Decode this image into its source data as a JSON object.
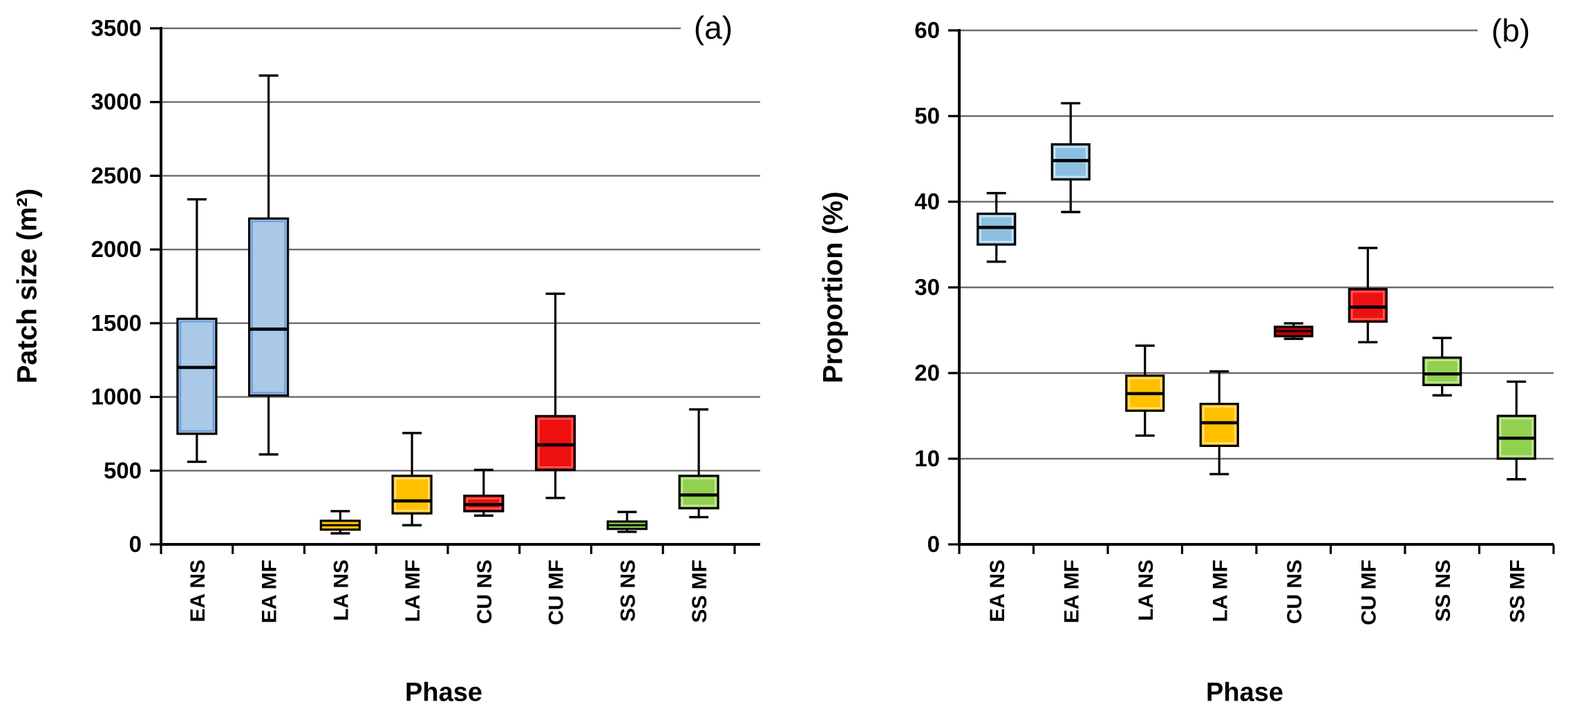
{
  "page": {
    "background": "#ffffff",
    "grid_color": "#6b6b6b",
    "axis_color": "#000000"
  },
  "chart_data": [
    {
      "type": "boxplot",
      "panel": "a",
      "annotation": "(a)",
      "ylabel": "Patch size (m²)",
      "xlabel": "Phase",
      "ylim": [
        0,
        3500
      ],
      "ytick_step": 500,
      "ytick_labels": [
        "3500",
        "3000",
        "2500",
        "2000",
        "1500",
        "1000",
        "500",
        "0"
      ],
      "grid": true,
      "legend": "none",
      "categories": [
        "EA NS",
        "EA MF",
        "LA NS",
        "LA MF",
        "CU NS",
        "CU MF",
        "SS NS",
        "SS MF"
      ],
      "series": [
        {
          "name": "EA NS",
          "min": 560,
          "q1": 750,
          "median": 1200,
          "q3": 1530,
          "max": 2340,
          "fill": "#aac8e8",
          "highlight": "#6f9fd8"
        },
        {
          "name": "EA MF",
          "min": 610,
          "q1": 1010,
          "median": 1460,
          "q3": 2210,
          "max": 3180,
          "fill": "#aac8e8",
          "highlight": "#6f9fd8"
        },
        {
          "name": "LA NS",
          "min": 75,
          "q1": 100,
          "median": 130,
          "q3": 160,
          "max": 225,
          "fill": "#ffc000",
          "highlight": "#ffdf7f"
        },
        {
          "name": "LA MF",
          "min": 130,
          "q1": 210,
          "median": 295,
          "q3": 465,
          "max": 755,
          "fill": "#ffc000",
          "highlight": "#ffdf7f"
        },
        {
          "name": "CU NS",
          "min": 195,
          "q1": 225,
          "median": 270,
          "q3": 330,
          "max": 505,
          "fill": "#ee0f0f",
          "highlight": "#ff5a5a"
        },
        {
          "name": "CU MF",
          "min": 315,
          "q1": 505,
          "median": 675,
          "q3": 870,
          "max": 1700,
          "fill": "#ee0f0f",
          "highlight": "#ff5a5a"
        },
        {
          "name": "SS NS",
          "min": 85,
          "q1": 105,
          "median": 130,
          "q3": 155,
          "max": 220,
          "fill": "#92d050",
          "highlight": "#c6e79a"
        },
        {
          "name": "SS MF",
          "min": 185,
          "q1": 245,
          "median": 335,
          "q3": 465,
          "max": 915,
          "fill": "#92d050",
          "highlight": "#c6e79a"
        }
      ]
    },
    {
      "type": "boxplot",
      "panel": "b",
      "annotation": "(b)",
      "ylabel": "Proportion (%)",
      "xlabel": "Phase",
      "ylim": [
        0,
        60
      ],
      "ytick_step": 10,
      "ytick_labels": [
        "60",
        "50",
        "40",
        "30",
        "20",
        "10",
        "0"
      ],
      "grid": true,
      "legend": "none",
      "categories": [
        "EA NS",
        "EA MF",
        "LA NS",
        "LA MF",
        "CU NS",
        "CU MF",
        "SS NS",
        "SS MF"
      ],
      "series": [
        {
          "name": "EA NS",
          "min": 33,
          "q1": 35,
          "median": 37,
          "q3": 38.6,
          "max": 41,
          "fill": "#8cc0e0",
          "highlight": "#c9e5f3"
        },
        {
          "name": "EA MF",
          "min": 38.8,
          "q1": 42.6,
          "median": 44.8,
          "q3": 46.7,
          "max": 51.5,
          "fill": "#8cc0e0",
          "highlight": "#c9e5f3"
        },
        {
          "name": "LA NS",
          "min": 12.7,
          "q1": 15.6,
          "median": 17.6,
          "q3": 19.7,
          "max": 23.2,
          "fill": "#ffc000",
          "highlight": "#ffdf7f"
        },
        {
          "name": "LA MF",
          "min": 8.2,
          "q1": 11.5,
          "median": 14.2,
          "q3": 16.4,
          "max": 20.2,
          "fill": "#ffc000",
          "highlight": "#ffdf7f"
        },
        {
          "name": "CU NS",
          "min": 24,
          "q1": 24.3,
          "median": 24.9,
          "q3": 25.4,
          "max": 25.8,
          "fill": "#c00000",
          "highlight": "#ff2a2a"
        },
        {
          "name": "CU MF",
          "min": 23.6,
          "q1": 26,
          "median": 27.7,
          "q3": 29.8,
          "max": 34.6,
          "fill": "#ee1111",
          "highlight": "#ff5a5a"
        },
        {
          "name": "SS NS",
          "min": 17.4,
          "q1": 18.6,
          "median": 19.9,
          "q3": 21.8,
          "max": 24.1,
          "fill": "#92d050",
          "highlight": "#c6e79a"
        },
        {
          "name": "SS MF",
          "min": 7.6,
          "q1": 10,
          "median": 12.4,
          "q3": 15,
          "max": 19,
          "fill": "#92d050",
          "highlight": "#c6e79a"
        }
      ]
    }
  ]
}
